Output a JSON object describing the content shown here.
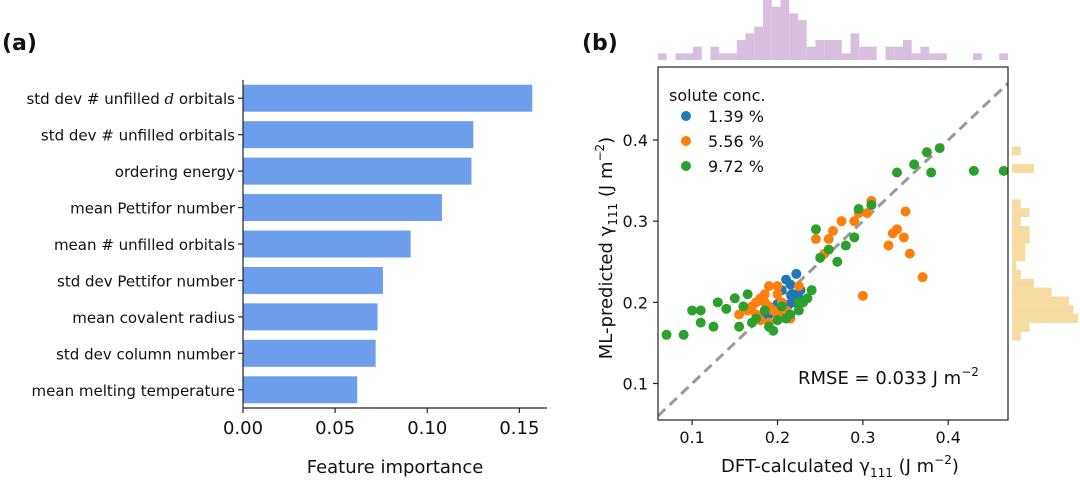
{
  "figure": {
    "panel_a_label": "(a)",
    "panel_b_label": "(b)"
  },
  "chart_data": [
    {
      "type": "bar",
      "orientation": "horizontal",
      "panel": "a",
      "categories": [
        "std dev # unfilled d orbitals",
        "std dev # unfilled orbitals",
        "ordering energy",
        "mean Pettifor number",
        "mean # unfilled orbitals",
        "std dev Pettifor number",
        "mean covalent radius",
        "std dev column number",
        "mean melting temperature"
      ],
      "label_parts": [
        [
          "std dev # unfilled ",
          "d",
          " orbitals"
        ],
        [
          "std dev # unfilled orbitals",
          "",
          ""
        ],
        [
          "ordering energy",
          "",
          ""
        ],
        [
          "mean Pettifor number",
          "",
          ""
        ],
        [
          "mean # unfilled orbitals",
          "",
          ""
        ],
        [
          "std dev Pettifor number",
          "",
          ""
        ],
        [
          "mean covalent radius",
          "",
          ""
        ],
        [
          "std dev column number",
          "",
          ""
        ],
        [
          "mean melting temperature",
          "",
          ""
        ]
      ],
      "values": [
        0.157,
        0.125,
        0.124,
        0.108,
        0.091,
        0.076,
        0.073,
        0.072,
        0.062
      ],
      "xlim": [
        0.0,
        0.165
      ],
      "xticks": [
        0.0,
        0.05,
        0.1,
        0.15
      ],
      "xtick_labels": [
        "0.00",
        "0.05",
        "0.10",
        "0.15"
      ],
      "xlabel": "Feature importance",
      "bar_color": "#6d9eeb"
    },
    {
      "type": "scatter",
      "panel": "b",
      "xlim": [
        0.06,
        0.47
      ],
      "ylim": [
        0.055,
        0.49
      ],
      "xticks": [
        0.1,
        0.2,
        0.3,
        0.4
      ],
      "xtick_labels": [
        "0.1",
        "0.2",
        "0.3",
        "0.4"
      ],
      "yticks": [
        0.1,
        0.2,
        0.3,
        0.4
      ],
      "ytick_labels": [
        "0.1",
        "0.2",
        "0.3",
        "0.4"
      ],
      "xlabel_prefix": "DFT-calculated γ",
      "xlabel_sub": "111",
      "xlabel_suffix": " (J m",
      "xlabel_sup": "−2",
      "xlabel_close": ")",
      "ylabel_prefix": "ML-predicted γ",
      "ylabel_sub": "111",
      "ylabel_suffix": " (J m",
      "ylabel_sup": "−2",
      "ylabel_close": ")",
      "legend_title": "solute conc.",
      "legend_position": "top-left",
      "annotation_text": "RMSE = 0.033 J m",
      "annotation_sup": "−2",
      "diagonal_color": "#9a9a9a",
      "series": [
        {
          "name": "1.39 %",
          "color": "#1f77b4",
          "points": [
            [
              0.21,
              0.228
            ],
            [
              0.215,
              0.222
            ],
            [
              0.205,
              0.215
            ],
            [
              0.222,
              0.235
            ],
            [
              0.218,
              0.21
            ],
            [
              0.225,
              0.205
            ],
            [
              0.2,
              0.198
            ],
            [
              0.213,
              0.197
            ],
            [
              0.208,
              0.193
            ],
            [
              0.22,
              0.2
            ],
            [
              0.195,
              0.19
            ],
            [
              0.21,
              0.185
            ],
            [
              0.19,
              0.185
            ],
            [
              0.185,
              0.183
            ],
            [
              0.216,
              0.208
            ],
            [
              0.227,
              0.215
            ]
          ]
        },
        {
          "name": "5.56 %",
          "color": "#ff7f0e",
          "points": [
            [
              0.155,
              0.185
            ],
            [
              0.165,
              0.19
            ],
            [
              0.17,
              0.195
            ],
            [
              0.175,
              0.2
            ],
            [
              0.18,
              0.205
            ],
            [
              0.185,
              0.2
            ],
            [
              0.19,
              0.195
            ],
            [
              0.195,
              0.19
            ],
            [
              0.2,
              0.21
            ],
            [
              0.205,
              0.2
            ],
            [
              0.21,
              0.19
            ],
            [
              0.175,
              0.185
            ],
            [
              0.18,
              0.178
            ],
            [
              0.19,
              0.175
            ],
            [
              0.2,
              0.185
            ],
            [
              0.185,
              0.21
            ],
            [
              0.19,
              0.22
            ],
            [
              0.2,
              0.22
            ],
            [
              0.215,
              0.18
            ],
            [
              0.225,
              0.22
            ],
            [
              0.245,
              0.278
            ],
            [
              0.26,
              0.278
            ],
            [
              0.265,
              0.288
            ],
            [
              0.275,
              0.3
            ],
            [
              0.29,
              0.3
            ],
            [
              0.295,
              0.31
            ],
            [
              0.305,
              0.31
            ],
            [
              0.31,
              0.325
            ],
            [
              0.33,
              0.27
            ],
            [
              0.335,
              0.285
            ],
            [
              0.34,
              0.29
            ],
            [
              0.348,
              0.28
            ],
            [
              0.35,
              0.312
            ],
            [
              0.355,
              0.26
            ],
            [
              0.37,
              0.231
            ],
            [
              0.3,
              0.208
            ],
            [
              0.255,
              0.26
            ]
          ]
        },
        {
          "name": "9.72 %",
          "color": "#2ca02c",
          "points": [
            [
              0.07,
              0.16
            ],
            [
              0.09,
              0.16
            ],
            [
              0.1,
              0.19
            ],
            [
              0.11,
              0.19
            ],
            [
              0.11,
              0.175
            ],
            [
              0.125,
              0.17
            ],
            [
              0.13,
              0.2
            ],
            [
              0.14,
              0.192
            ],
            [
              0.15,
              0.205
            ],
            [
              0.155,
              0.17
            ],
            [
              0.16,
              0.195
            ],
            [
              0.165,
              0.21
            ],
            [
              0.17,
              0.175
            ],
            [
              0.175,
              0.18
            ],
            [
              0.185,
              0.19
            ],
            [
              0.19,
              0.17
            ],
            [
              0.195,
              0.165
            ],
            [
              0.2,
              0.178
            ],
            [
              0.21,
              0.18
            ],
            [
              0.215,
              0.185
            ],
            [
              0.225,
              0.19
            ],
            [
              0.23,
              0.2
            ],
            [
              0.235,
              0.205
            ],
            [
              0.24,
              0.215
            ],
            [
              0.245,
              0.29
            ],
            [
              0.25,
              0.255
            ],
            [
              0.26,
              0.265
            ],
            [
              0.27,
              0.25
            ],
            [
              0.28,
              0.27
            ],
            [
              0.29,
              0.28
            ],
            [
              0.295,
              0.315
            ],
            [
              0.31,
              0.32
            ],
            [
              0.34,
              0.36
            ],
            [
              0.36,
              0.37
            ],
            [
              0.375,
              0.385
            ],
            [
              0.38,
              0.36
            ],
            [
              0.39,
              0.39
            ],
            [
              0.43,
              0.362
            ],
            [
              0.465,
              0.362
            ],
            [
              0.225,
              0.2
            ],
            [
              0.205,
              0.195
            ]
          ]
        }
      ],
      "marginal_colors": {
        "top": "#d7bfdd",
        "right": "#f5dca0"
      }
    }
  ]
}
